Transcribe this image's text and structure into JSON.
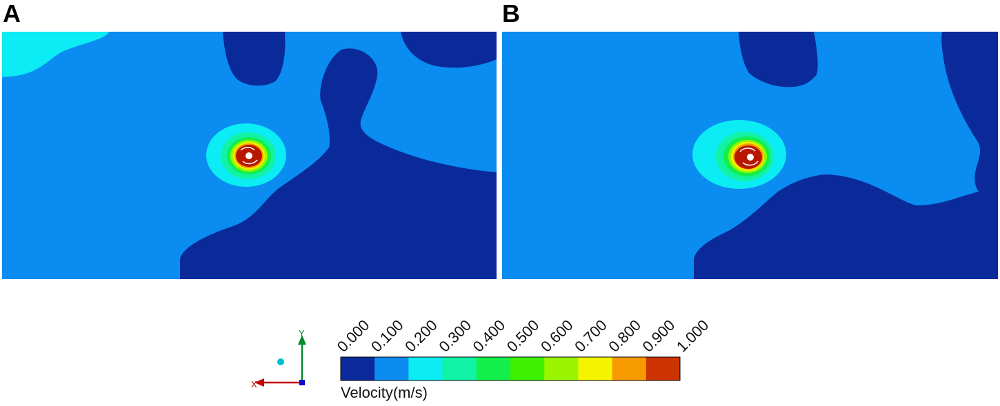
{
  "panels": [
    {
      "label": "A"
    },
    {
      "label": "B"
    }
  ],
  "colorbar": {
    "title": "Velocity(m/s)",
    "ticks": [
      "0.000",
      "0.100",
      "0.200",
      "0.300",
      "0.400",
      "0.500",
      "0.600",
      "0.700",
      "0.800",
      "0.900",
      "1.000"
    ],
    "colors": [
      "#0a2a9a",
      "#0a8cf0",
      "#0cecf4",
      "#12f2a6",
      "#12ef4a",
      "#3cf000",
      "#9cf500",
      "#f4f400",
      "#f79a00",
      "#cc3300"
    ]
  },
  "axes_triad": {
    "x_label": "X",
    "y_label": "Y",
    "x_color": "#c00000",
    "y_color": "#008a2e",
    "z_color": "#0000cc",
    "point_color": "#00bcd4"
  },
  "colors": {
    "dark": "#0a2a9a",
    "mid": "#0a8cf0",
    "cyan": "#0cecf4",
    "core": "#b81800"
  }
}
